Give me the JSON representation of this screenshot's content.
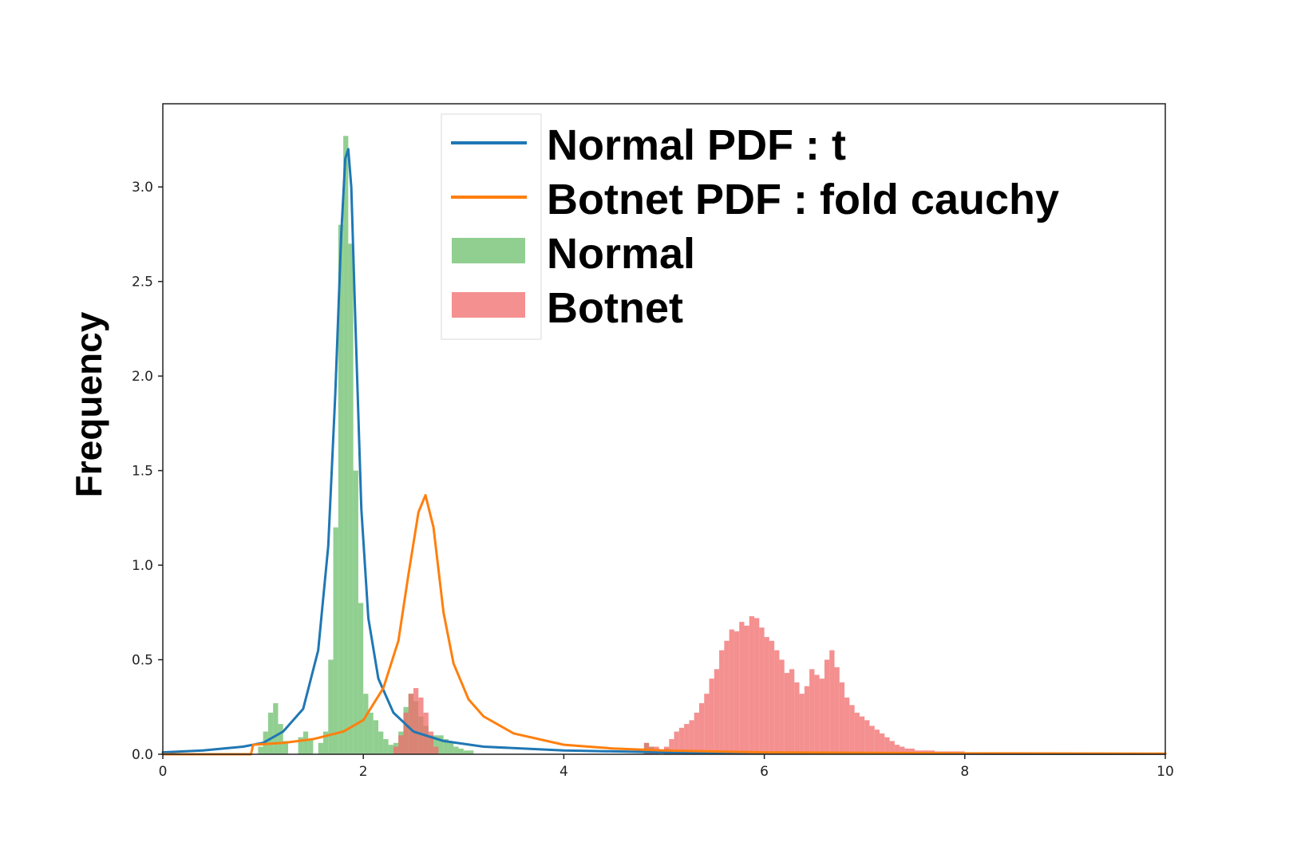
{
  "chart_data": {
    "type": "bar",
    "title": "",
    "xlabel": "",
    "ylabel": "Frequency",
    "xlim": [
      0,
      10
    ],
    "ylim": [
      0,
      3.44
    ],
    "grid": false,
    "legend_position": "top-center",
    "x_ticks": [
      "0",
      "2",
      "4",
      "6",
      "8",
      "10"
    ],
    "y_ticks": [
      "0.0",
      "0.5",
      "1.0",
      "1.5",
      "2.0",
      "2.5",
      "3.0"
    ],
    "x_tick_values": [
      0,
      2,
      4,
      6,
      8,
      10
    ],
    "y_tick_values": [
      0,
      0.5,
      1.0,
      1.5,
      2.0,
      2.5,
      3.0
    ],
    "series": [
      {
        "name": "Normal PDF : t",
        "kind": "line",
        "color": "#1f77b4",
        "x": [
          0,
          0.4,
          0.8,
          1.0,
          1.2,
          1.4,
          1.55,
          1.65,
          1.72,
          1.78,
          1.82,
          1.85,
          1.88,
          1.92,
          1.98,
          2.05,
          2.15,
          2.3,
          2.5,
          2.8,
          3.2,
          3.6,
          4.0,
          5.0,
          6.0,
          8.0,
          10.0
        ],
        "y": [
          0.01,
          0.02,
          0.04,
          0.06,
          0.12,
          0.24,
          0.55,
          1.1,
          1.9,
          2.75,
          3.15,
          3.2,
          3.0,
          2.3,
          1.3,
          0.72,
          0.4,
          0.22,
          0.12,
          0.07,
          0.04,
          0.03,
          0.02,
          0.01,
          0.005,
          0.003,
          0.002
        ]
      },
      {
        "name": "Botnet PDF : fold cauchy",
        "kind": "line",
        "color": "#ff7f0e",
        "x": [
          0,
          0.88,
          0.9,
          1.2,
          1.5,
          1.8,
          2.0,
          2.2,
          2.35,
          2.45,
          2.55,
          2.62,
          2.7,
          2.8,
          2.9,
          3.05,
          3.2,
          3.5,
          4.0,
          4.5,
          5.0,
          6.0,
          8.0,
          10.0
        ],
        "y": [
          0,
          0,
          0.05,
          0.06,
          0.08,
          0.12,
          0.18,
          0.35,
          0.6,
          0.95,
          1.28,
          1.37,
          1.2,
          0.75,
          0.48,
          0.29,
          0.2,
          0.11,
          0.05,
          0.03,
          0.02,
          0.01,
          0.005,
          0.003
        ]
      },
      {
        "name": "Normal",
        "kind": "histogram",
        "color": "#6cbf6c",
        "bins": [
          [
            0.95,
            1.0,
            0.04
          ],
          [
            1.0,
            1.05,
            0.12
          ],
          [
            1.05,
            1.1,
            0.22
          ],
          [
            1.1,
            1.15,
            0.27
          ],
          [
            1.15,
            1.2,
            0.16
          ],
          [
            1.2,
            1.25,
            0.07
          ],
          [
            1.35,
            1.4,
            0.09
          ],
          [
            1.4,
            1.45,
            0.12
          ],
          [
            1.45,
            1.5,
            0.08
          ],
          [
            1.55,
            1.6,
            0.06
          ],
          [
            1.6,
            1.65,
            0.12
          ],
          [
            1.65,
            1.7,
            0.5
          ],
          [
            1.7,
            1.75,
            1.2
          ],
          [
            1.75,
            1.8,
            2.8
          ],
          [
            1.8,
            1.85,
            3.27
          ],
          [
            1.85,
            1.9,
            2.7
          ],
          [
            1.9,
            1.95,
            1.5
          ],
          [
            1.95,
            2.0,
            0.8
          ],
          [
            2.0,
            2.05,
            0.32
          ],
          [
            2.05,
            2.1,
            0.22
          ],
          [
            2.1,
            2.15,
            0.18
          ],
          [
            2.15,
            2.2,
            0.12
          ],
          [
            2.2,
            2.25,
            0.08
          ],
          [
            2.25,
            2.3,
            0.05
          ],
          [
            2.3,
            2.35,
            0.06
          ],
          [
            2.35,
            2.4,
            0.12
          ],
          [
            2.4,
            2.45,
            0.25
          ],
          [
            2.45,
            2.5,
            0.32
          ],
          [
            2.5,
            2.55,
            0.28
          ],
          [
            2.55,
            2.6,
            0.2
          ],
          [
            2.6,
            2.65,
            0.15
          ],
          [
            2.65,
            2.7,
            0.1
          ],
          [
            2.7,
            2.75,
            0.1
          ],
          [
            2.75,
            2.8,
            0.1
          ],
          [
            2.8,
            2.85,
            0.08
          ],
          [
            2.85,
            2.9,
            0.06
          ],
          [
            2.9,
            2.95,
            0.04
          ],
          [
            2.95,
            3.0,
            0.03
          ],
          [
            3.0,
            3.1,
            0.02
          ],
          [
            4.8,
            4.85,
            0.06
          ],
          [
            4.85,
            4.9,
            0.04
          ],
          [
            5.0,
            5.05,
            0.03
          ]
        ]
      },
      {
        "name": "Botnet",
        "kind": "histogram",
        "color": "#f26b6b",
        "bins": [
          [
            2.3,
            2.35,
            0.04
          ],
          [
            2.35,
            2.4,
            0.1
          ],
          [
            2.4,
            2.45,
            0.22
          ],
          [
            2.45,
            2.5,
            0.32
          ],
          [
            2.5,
            2.55,
            0.35
          ],
          [
            2.55,
            2.6,
            0.3
          ],
          [
            2.6,
            2.65,
            0.22
          ],
          [
            2.65,
            2.7,
            0.12
          ],
          [
            2.7,
            2.75,
            0.04
          ],
          [
            4.8,
            4.85,
            0.06
          ],
          [
            4.85,
            4.9,
            0.04
          ],
          [
            4.9,
            4.95,
            0.04
          ],
          [
            5.0,
            5.05,
            0.04
          ],
          [
            5.05,
            5.1,
            0.08
          ],
          [
            5.1,
            5.15,
            0.12
          ],
          [
            5.15,
            5.2,
            0.14
          ],
          [
            5.2,
            5.25,
            0.16
          ],
          [
            5.25,
            5.3,
            0.18
          ],
          [
            5.3,
            5.35,
            0.22
          ],
          [
            5.35,
            5.4,
            0.27
          ],
          [
            5.4,
            5.45,
            0.32
          ],
          [
            5.45,
            5.5,
            0.4
          ],
          [
            5.5,
            5.55,
            0.45
          ],
          [
            5.55,
            5.6,
            0.55
          ],
          [
            5.6,
            5.65,
            0.6
          ],
          [
            5.65,
            5.7,
            0.66
          ],
          [
            5.7,
            5.75,
            0.65
          ],
          [
            5.75,
            5.8,
            0.7
          ],
          [
            5.8,
            5.85,
            0.68
          ],
          [
            5.85,
            5.9,
            0.73
          ],
          [
            5.9,
            5.95,
            0.72
          ],
          [
            5.95,
            6.0,
            0.67
          ],
          [
            6.0,
            6.05,
            0.62
          ],
          [
            6.05,
            6.1,
            0.6
          ],
          [
            6.1,
            6.15,
            0.55
          ],
          [
            6.15,
            6.2,
            0.5
          ],
          [
            6.2,
            6.25,
            0.43
          ],
          [
            6.25,
            6.3,
            0.45
          ],
          [
            6.3,
            6.35,
            0.38
          ],
          [
            6.35,
            6.4,
            0.32
          ],
          [
            6.4,
            6.45,
            0.36
          ],
          [
            6.45,
            6.5,
            0.45
          ],
          [
            6.5,
            6.55,
            0.42
          ],
          [
            6.55,
            6.6,
            0.4
          ],
          [
            6.6,
            6.65,
            0.5
          ],
          [
            6.65,
            6.7,
            0.55
          ],
          [
            6.7,
            6.75,
            0.46
          ],
          [
            6.75,
            6.8,
            0.38
          ],
          [
            6.8,
            6.85,
            0.3
          ],
          [
            6.85,
            6.9,
            0.26
          ],
          [
            6.9,
            6.95,
            0.22
          ],
          [
            6.95,
            7.0,
            0.2
          ],
          [
            7.0,
            7.05,
            0.18
          ],
          [
            7.05,
            7.1,
            0.15
          ],
          [
            7.1,
            7.15,
            0.13
          ],
          [
            7.15,
            7.2,
            0.11
          ],
          [
            7.2,
            7.25,
            0.09
          ],
          [
            7.25,
            7.3,
            0.07
          ],
          [
            7.3,
            7.35,
            0.05
          ],
          [
            7.35,
            7.4,
            0.04
          ],
          [
            7.4,
            7.5,
            0.03
          ],
          [
            7.5,
            7.7,
            0.02
          ],
          [
            7.7,
            8.0,
            0.015
          ],
          [
            8.0,
            8.3,
            0.01
          ]
        ]
      }
    ]
  }
}
